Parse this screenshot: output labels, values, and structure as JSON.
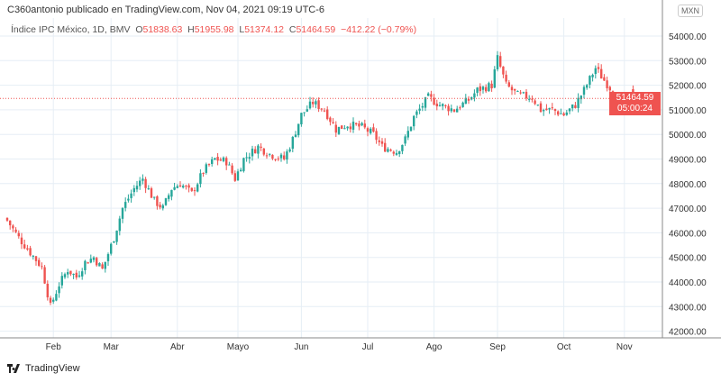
{
  "header": {
    "attribution": "C360antonio publicado en TradingView.com, Nov 04, 2021 09:19 UTC-6"
  },
  "legend": {
    "symbol": "Índice IPC México, 1D, BMV",
    "o_label": "O",
    "open": "51838.63",
    "h_label": "H",
    "high": "51955.98",
    "l_label": "L",
    "low": "51374.12",
    "c_label": "C",
    "close": "51464.59",
    "change": "−412.22 (−0.79%)"
  },
  "currency": "MXN",
  "last_price": "51464.59",
  "countdown": "05:00:24",
  "footer": {
    "brand": "TradingView"
  },
  "colors": {
    "up": "#26a69a",
    "down": "#ef5350",
    "grid": "#e6eef5"
  },
  "chart_data": {
    "type": "candlestick",
    "title": "Índice IPC México, 1D, BMV",
    "y_ticks": [
      "42000.00",
      "43000.00",
      "44000.00",
      "45000.00",
      "46000.00",
      "47000.00",
      "48000.00",
      "49000.00",
      "50000.00",
      "51000.00",
      "52000.00",
      "53000.00",
      "54000.00"
    ],
    "ylim": [
      41800,
      54200
    ],
    "x_ticks": [
      {
        "label": "Feb",
        "day": 16
      },
      {
        "label": "Mar",
        "day": 36
      },
      {
        "label": "Abr",
        "day": 59
      },
      {
        "label": "Mayo",
        "day": 80
      },
      {
        "label": "Jun",
        "day": 102
      },
      {
        "label": "Jul",
        "day": 125
      },
      {
        "label": "Ago",
        "day": 148
      },
      {
        "label": "Sep",
        "day": 170
      },
      {
        "label": "Oct",
        "day": 193
      },
      {
        "label": "Nov",
        "day": 214
      }
    ],
    "close_path": [
      [
        0,
        46500
      ],
      [
        4,
        45800
      ],
      [
        8,
        45200
      ],
      [
        12,
        44600
      ],
      [
        15,
        43000
      ],
      [
        18,
        43900
      ],
      [
        21,
        44500
      ],
      [
        24,
        44200
      ],
      [
        27,
        44800
      ],
      [
        30,
        45000
      ],
      [
        33,
        44500
      ],
      [
        37,
        45800
      ],
      [
        40,
        47000
      ],
      [
        44,
        47800
      ],
      [
        47,
        48200
      ],
      [
        51,
        47300
      ],
      [
        54,
        47000
      ],
      [
        57,
        47800
      ],
      [
        60,
        48000
      ],
      [
        64,
        47600
      ],
      [
        68,
        48500
      ],
      [
        72,
        49000
      ],
      [
        76,
        48900
      ],
      [
        79,
        48200
      ],
      [
        82,
        49000
      ],
      [
        87,
        49500
      ],
      [
        91,
        49200
      ],
      [
        96,
        49000
      ],
      [
        99,
        49800
      ],
      [
        102,
        50800
      ],
      [
        106,
        51300
      ],
      [
        110,
        51000
      ],
      [
        114,
        50200
      ],
      [
        118,
        50400
      ],
      [
        123,
        50300
      ],
      [
        127,
        50000
      ],
      [
        130,
        49500
      ],
      [
        135,
        49300
      ],
      [
        138,
        49800
      ],
      [
        141,
        50700
      ],
      [
        146,
        51500
      ],
      [
        150,
        51200
      ],
      [
        155,
        51000
      ],
      [
        160,
        51400
      ],
      [
        163,
        51800
      ],
      [
        168,
        52000
      ],
      [
        170,
        53100
      ],
      [
        173,
        52000
      ],
      [
        177,
        51600
      ],
      [
        182,
        51500
      ],
      [
        185,
        51000
      ],
      [
        189,
        51000
      ],
      [
        193,
        50800
      ],
      [
        197,
        51200
      ],
      [
        200,
        51800
      ],
      [
        204,
        52700
      ],
      [
        207,
        52200
      ],
      [
        211,
        51600
      ],
      [
        214,
        51000
      ],
      [
        217,
        51464.59
      ]
    ]
  }
}
